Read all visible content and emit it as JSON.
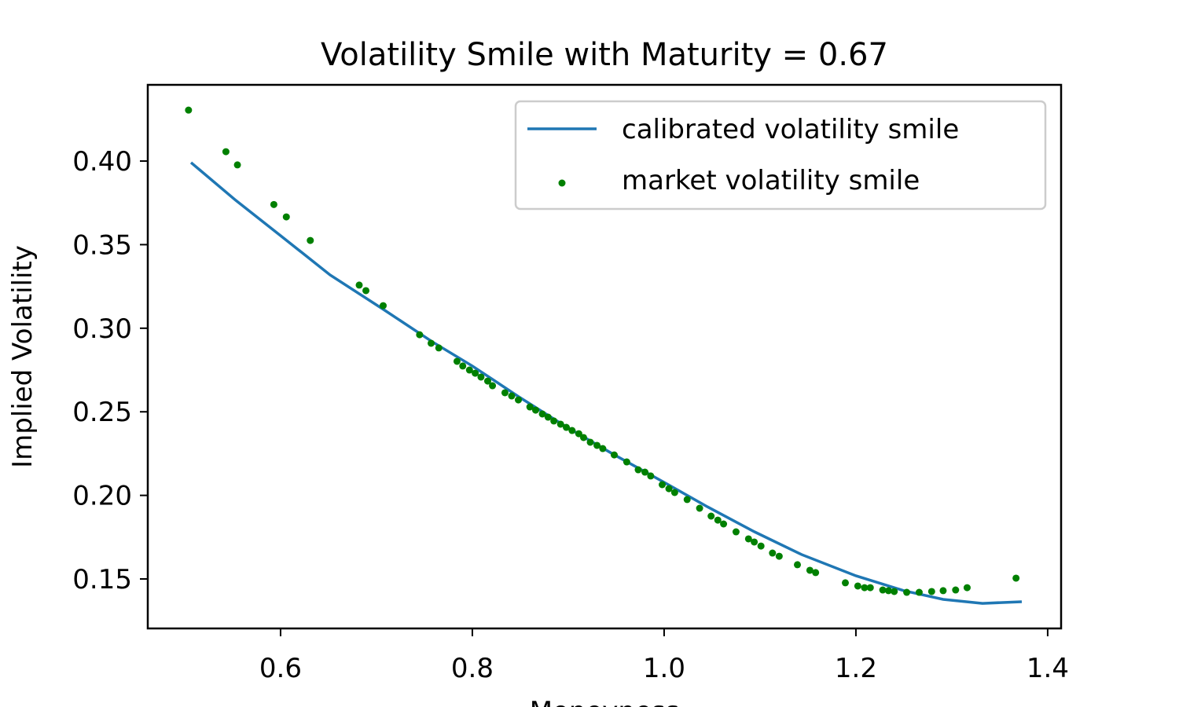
{
  "chart_data": {
    "type": "scatter",
    "title": "Volatility Smile with Maturity = 0.67",
    "x_label": "Moneyness",
    "y_label": "Implied Volatility",
    "xlim": [
      0.4615,
      1.414
    ],
    "ylim": [
      0.1204,
      0.4456
    ],
    "xticks": [
      0.6,
      0.8,
      {
        "value": 1.0,
        "label": "1.0"
      },
      1.2,
      1.4
    ],
    "yticks": [
      {
        "value": 0.15,
        "label": "0.15"
      },
      {
        "value": 0.2,
        "label": "0.20"
      },
      {
        "value": 0.25,
        "label": "0.25"
      },
      {
        "value": 0.3,
        "label": "0.30"
      },
      0.35,
      {
        "value": 0.4,
        "label": "0.40"
      }
    ],
    "grid": false,
    "legend": "upper right",
    "series": [
      {
        "name": "calibrated volatility smile",
        "kind": "line",
        "color": "#1f77b4",
        "x": [
          0.5066,
          0.5533,
          0.6,
          0.6516,
          0.7074,
          0.7582,
          0.8,
          0.8484,
          0.8975,
          0.9467,
          1.0,
          1.0451,
          1.0943,
          1.1434,
          1.2,
          1.25,
          1.291,
          1.332,
          1.373
        ],
        "values": [
          0.3991,
          0.3765,
          0.3554,
          0.3319,
          0.3112,
          0.2919,
          0.2774,
          0.259,
          0.2412,
          0.2247,
          0.2078,
          0.1932,
          0.1782,
          0.1646,
          0.1519,
          0.143,
          0.1378,
          0.1354,
          0.1364
        ]
      },
      {
        "name": "market volatility smile",
        "kind": "scatter",
        "color": "#008000",
        "x": [
          0.504,
          0.543,
          0.555,
          0.593,
          0.606,
          0.631,
          0.682,
          0.689,
          0.707,
          0.745,
          0.757,
          0.765,
          0.784,
          0.79,
          0.797,
          0.803,
          0.809,
          0.816,
          0.821,
          0.834,
          0.841,
          0.848,
          0.86,
          0.866,
          0.873,
          0.879,
          0.885,
          0.892,
          0.898,
          0.904,
          0.911,
          0.916,
          0.923,
          0.93,
          0.936,
          0.948,
          0.961,
          0.973,
          0.98,
          0.986,
          0.998,
          1.005,
          1.011,
          1.024,
          1.037,
          1.049,
          1.056,
          1.062,
          1.075,
          1.088,
          1.094,
          1.101,
          1.113,
          1.12,
          1.139,
          1.152,
          1.158,
          1.189,
          1.202,
          1.209,
          1.215,
          1.228,
          1.234,
          1.24,
          1.253,
          1.266,
          1.279,
          1.291,
          1.304,
          1.316,
          1.367
        ],
        "values": [
          0.4305,
          0.4056,
          0.3977,
          0.374,
          0.3666,
          0.3525,
          0.3258,
          0.3225,
          0.3135,
          0.2961,
          0.291,
          0.2882,
          0.2802,
          0.2774,
          0.275,
          0.2731,
          0.2708,
          0.2684,
          0.2656,
          0.2614,
          0.2595,
          0.2571,
          0.2529,
          0.251,
          0.2487,
          0.2468,
          0.2445,
          0.2426,
          0.2407,
          0.2388,
          0.2369,
          0.2346,
          0.2318,
          0.2299,
          0.228,
          0.2242,
          0.22,
          0.2153,
          0.2139,
          0.2116,
          0.2064,
          0.204,
          0.2017,
          0.1975,
          0.1923,
          0.1876,
          0.1852,
          0.1829,
          0.1782,
          0.174,
          0.1721,
          0.1697,
          0.1655,
          0.1636,
          0.1585,
          0.1552,
          0.1538,
          0.1477,
          0.1458,
          0.1448,
          0.1448,
          0.1434,
          0.143,
          0.1425,
          0.142,
          0.142,
          0.1425,
          0.143,
          0.1434,
          0.1448,
          0.1505
        ]
      }
    ]
  }
}
